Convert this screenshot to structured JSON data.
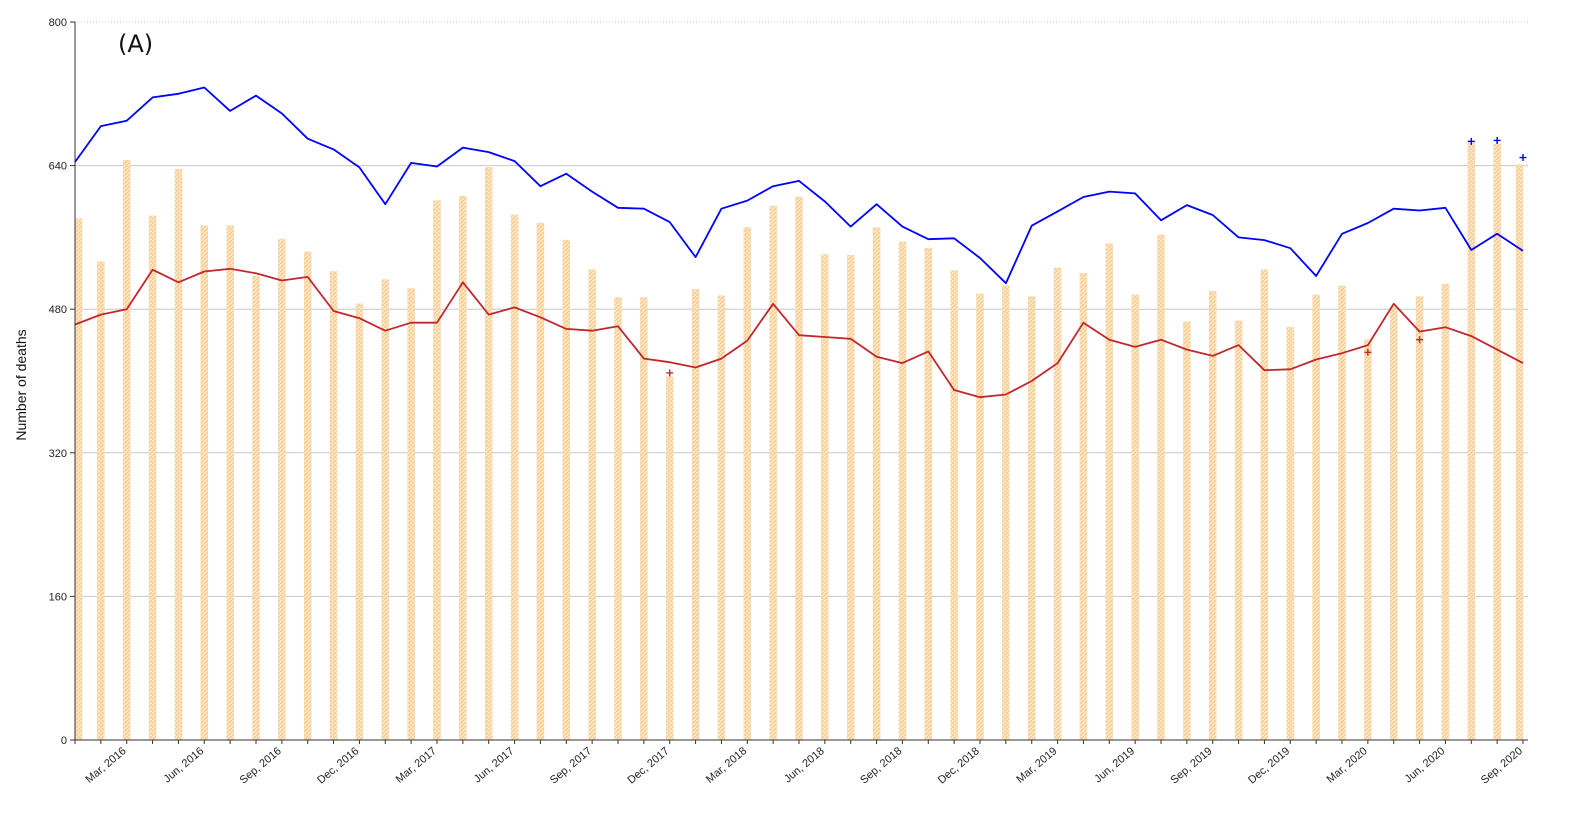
{
  "chart_data": {
    "type": "bar",
    "panel_label": "(A)",
    "title": "",
    "xlabel": "",
    "ylabel": "Number of deaths",
    "ylim": [
      0,
      800
    ],
    "yticks": [
      0,
      160,
      320,
      480,
      640,
      800
    ],
    "grid": true,
    "x": [
      "Jan, 2016",
      "Feb, 2016",
      "Mar, 2016",
      "Apr, 2016",
      "May, 2016",
      "Jun, 2016",
      "Jul, 2016",
      "Aug, 2016",
      "Sep, 2016",
      "Oct, 2016",
      "Nov, 2016",
      "Dec, 2016",
      "Jan, 2017",
      "Feb, 2017",
      "Mar, 2017",
      "Apr, 2017",
      "May, 2017",
      "Jun, 2017",
      "Jul, 2017",
      "Aug, 2017",
      "Sep, 2017",
      "Oct, 2017",
      "Nov, 2017",
      "Dec, 2017",
      "Jan, 2018",
      "Feb, 2018",
      "Mar, 2018",
      "Apr, 2018",
      "May, 2018",
      "Jun, 2018",
      "Jul, 2018",
      "Aug, 2018",
      "Sep, 2018",
      "Oct, 2018",
      "Nov, 2018",
      "Dec, 2018",
      "Jan, 2019",
      "Feb, 2019",
      "Mar, 2019",
      "Apr, 2019",
      "May, 2019",
      "Jun, 2019",
      "Jul, 2019",
      "Aug, 2019",
      "Sep, 2019",
      "Oct, 2019",
      "Nov, 2019",
      "Dec, 2019",
      "Jan, 2020",
      "Feb, 2020",
      "Mar, 2020",
      "Apr, 2020",
      "May, 2020",
      "Jun, 2020",
      "Jul, 2020",
      "Aug, 2020",
      "Sep, 2020"
    ],
    "xtick_labels": [
      {
        "index": 2,
        "label": "Mar, 2016"
      },
      {
        "index": 5,
        "label": "Jun, 2016"
      },
      {
        "index": 8,
        "label": "Sep, 2016"
      },
      {
        "index": 11,
        "label": "Dec, 2016"
      },
      {
        "index": 14,
        "label": "Mar, 2017"
      },
      {
        "index": 17,
        "label": "Jun, 2017"
      },
      {
        "index": 20,
        "label": "Sep, 2017"
      },
      {
        "index": 23,
        "label": "Dec, 2017"
      },
      {
        "index": 26,
        "label": "Mar, 2018"
      },
      {
        "index": 29,
        "label": "Jun, 2018"
      },
      {
        "index": 32,
        "label": "Sep, 2018"
      },
      {
        "index": 35,
        "label": "Dec, 2018"
      },
      {
        "index": 38,
        "label": "Mar, 2019"
      },
      {
        "index": 41,
        "label": "Jun, 2019"
      },
      {
        "index": 44,
        "label": "Sep, 2019"
      },
      {
        "index": 47,
        "label": "Dec, 2019"
      },
      {
        "index": 50,
        "label": "Mar, 2020"
      },
      {
        "index": 53,
        "label": "Jun, 2020"
      },
      {
        "index": 56,
        "label": "Sep, 2020"
      }
    ],
    "series": [
      {
        "kind": "bar",
        "color": "#f5c98a",
        "values": [
          581,
          533,
          646,
          584,
          636,
          573,
          573,
          517,
          558,
          544,
          522,
          486,
          513,
          503,
          601,
          606,
          638,
          585,
          576,
          557,
          524,
          493,
          493,
          405,
          502,
          495,
          571,
          595,
          605,
          541,
          540,
          571,
          555,
          548,
          523,
          497,
          506,
          494,
          526,
          520,
          553,
          496,
          563,
          466,
          500,
          467,
          524,
          460,
          496,
          506,
          446,
          483,
          494,
          508,
          665,
          664,
          641
        ]
      },
      {
        "kind": "line",
        "color": "#0000ff",
        "values": [
          644,
          684,
          690,
          716,
          720,
          727,
          701,
          718,
          698,
          670,
          658,
          638,
          597,
          643,
          639,
          660,
          655,
          645,
          617,
          631,
          611,
          593,
          592,
          577,
          538,
          592,
          601,
          617,
          623,
          600,
          572,
          597,
          572,
          558,
          559,
          537,
          509,
          573,
          589,
          605,
          611,
          609,
          579,
          596,
          585,
          560,
          557,
          548,
          517,
          564,
          576,
          592,
          590,
          593,
          546,
          564,
          545
        ],
        "markers": [
          {
            "index": 54,
            "value": 667
          },
          {
            "index": 55,
            "value": 668
          },
          {
            "index": 56,
            "value": 649
          }
        ]
      },
      {
        "kind": "line",
        "color": "#c0282d",
        "values": [
          463,
          474,
          480,
          524,
          510,
          522,
          525,
          520,
          512,
          516,
          478,
          470,
          456,
          465,
          465,
          510,
          474,
          482,
          471,
          458,
          456,
          461,
          425,
          421,
          415,
          425,
          445,
          486,
          451,
          449,
          447,
          427,
          420,
          433,
          390,
          382,
          385,
          400,
          420,
          465,
          446,
          438,
          446,
          435,
          428,
          440,
          412,
          413,
          424,
          431,
          440,
          486,
          455,
          460,
          450,
          435,
          420
        ],
        "markers": [
          {
            "index": 23,
            "value": 409
          },
          {
            "index": 50,
            "value": 432
          },
          {
            "index": 52,
            "value": 446
          }
        ]
      }
    ]
  }
}
